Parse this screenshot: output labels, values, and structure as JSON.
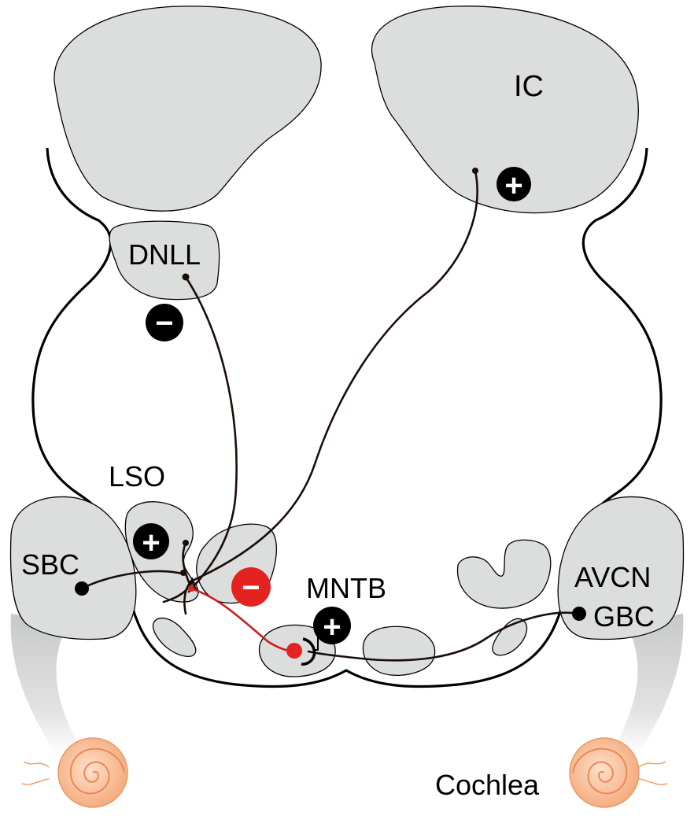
{
  "labels": {
    "ic": "IC",
    "dnll": "DNLL",
    "lso": "LSO",
    "sbc": "SBC",
    "mntb": "MNTB",
    "avcn": "AVCN",
    "gbc": "GBC",
    "cochlea": "Cochlea"
  },
  "signs": {
    "excitatory": "+",
    "inhibitory": "−"
  },
  "colors": {
    "nucleus_fill": "#dcdedd",
    "excitatory_symbol": "#000000",
    "inhibitory_red": "#e42320",
    "cochlea": "#f5b48a",
    "axon_dark": "#1a0d08"
  }
}
